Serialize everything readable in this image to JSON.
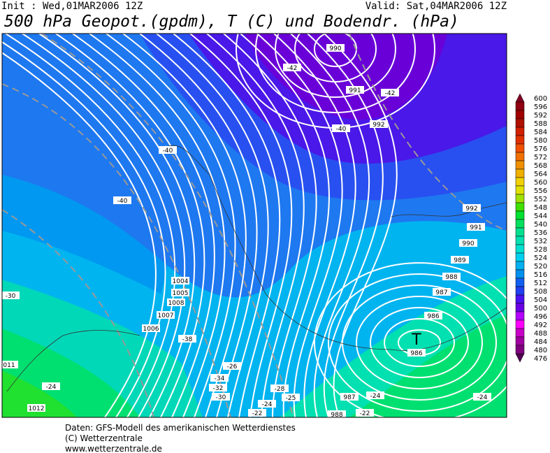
{
  "header": {
    "init": "Init : Wed,01MAR2006 12Z",
    "valid": "Valid: Sat,04MAR2006 12Z",
    "title": "500 hPa Geopot.(gpdm), T (C) und Bodendr. (hPa)"
  },
  "legend": {
    "ticks": [
      600,
      596,
      592,
      588,
      584,
      580,
      576,
      572,
      568,
      564,
      560,
      556,
      552,
      548,
      544,
      540,
      536,
      532,
      528,
      524,
      520,
      516,
      512,
      508,
      504,
      500,
      496,
      492,
      488,
      484,
      480,
      476
    ],
    "colors": [
      "#800020",
      "#900010",
      "#a00000",
      "#b01000",
      "#d02000",
      "#e03000",
      "#f05000",
      "#f07000",
      "#f09000",
      "#f0b000",
      "#f0d000",
      "#e0e000",
      "#a0e000",
      "#40e000",
      "#00e030",
      "#00e060",
      "#00e090",
      "#00e0b0",
      "#00e0d0",
      "#00d0f0",
      "#00b0f0",
      "#0090f0",
      "#1060f0",
      "#2040f0",
      "#4a10f0",
      "#6a00e6",
      "#b400ff",
      "#ff00ff",
      "#c800c8",
      "#a000a0",
      "#800080",
      "#500050"
    ]
  },
  "map": {
    "labels": [
      "990",
      "-42",
      "991",
      "-42",
      "-40",
      "992",
      "-40",
      "-40",
      "992",
      "991",
      "990",
      "989",
      "988",
      "987",
      "986",
      "986",
      "1004",
      "1005",
      "1008",
      "1007",
      "1006",
      "-38",
      "-30",
      "011",
      "-24",
      "-26",
      "-34",
      "-32",
      "-30",
      "-28",
      "-25",
      "-24",
      "-22",
      "-22",
      "987",
      "-24",
      "-24",
      "988",
      "1012"
    ],
    "low_symbol": "T"
  },
  "footer": {
    "lines": [
      "Daten: GFS-Modell des amerikanischen Wetterdienstes",
      "(C) Wetterzentrale",
      "www.wetterzentrale.de"
    ]
  }
}
